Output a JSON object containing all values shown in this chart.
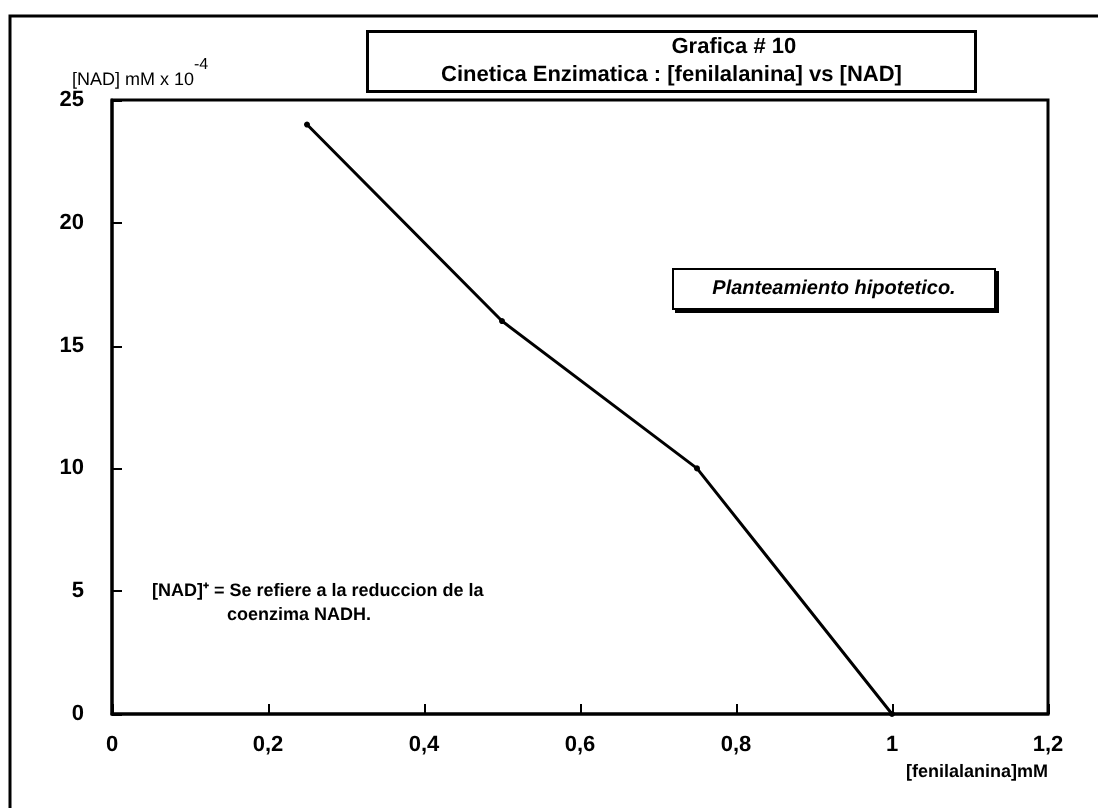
{
  "chart_data": {
    "type": "line",
    "title": "Grafica # 10",
    "subtitle": "Cinetica Enzimatica : [fenilalanina] vs [NAD]",
    "xlabel": "[fenilalanina]mM",
    "ylabel": "[NAD] mM x 10$^{-4}$",
    "x": [
      0.25,
      0.5,
      0.75,
      1
    ],
    "series": [
      {
        "color": "#000000",
        "values": [
          24,
          16,
          10,
          0
        ]
      }
    ],
    "xlim": [
      0,
      1.2
    ],
    "xticks": [
      0,
      {
        "value": 0.2,
        "label": "0,2"
      },
      {
        "value": 0.4,
        "label": "0,4"
      },
      {
        "value": 0.6,
        "label": "0,6"
      },
      {
        "value": 0.8,
        "label": "0,8"
      },
      1,
      {
        "value": 1.2,
        "label": "1,2"
      }
    ],
    "ylim": [
      0,
      25
    ],
    "yticks": [
      0,
      5,
      10,
      15,
      20,
      25
    ],
    "annotations": [
      "Planteamiento hipotetico.",
      "[NAD]⁺ = Se refiere a la reduccion de la\ncoenzima NADH."
    ],
    "grid": false,
    "marker": "circle",
    "line_style": "solid"
  }
}
